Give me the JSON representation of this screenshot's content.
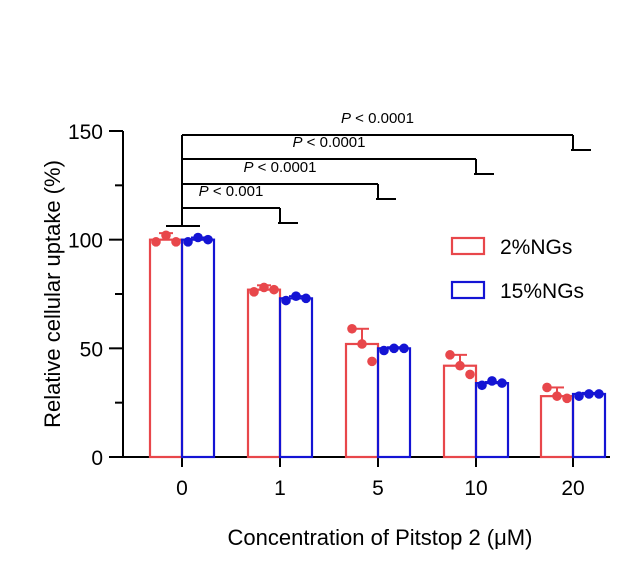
{
  "chart_data": {
    "type": "bar",
    "xlabel": "Concentration of Pitstop 2 (μM)",
    "ylabel": "Relative cellular uptake (%)",
    "categories": [
      "0",
      "1",
      "5",
      "10",
      "20"
    ],
    "ylim": [
      0,
      150
    ],
    "yticks": [
      0,
      50,
      100,
      150
    ],
    "series": [
      {
        "name": "2%NGs",
        "color": "#e8474b",
        "values": [
          100,
          77,
          52,
          42,
          28
        ],
        "errors": [
          3,
          2,
          7,
          5,
          4
        ],
        "points": [
          [
            99,
            102,
            99
          ],
          [
            76,
            78,
            77
          ],
          [
            59,
            52,
            44
          ],
          [
            47,
            42,
            38
          ],
          [
            32,
            28,
            27
          ]
        ]
      },
      {
        "name": "15%NGs",
        "color": "#1414d4",
        "values": [
          100,
          73,
          50,
          34,
          29
        ],
        "errors": [
          1,
          1,
          0.5,
          0.5,
          0.5
        ],
        "points": [
          [
            99,
            101,
            100
          ],
          [
            72,
            74,
            73
          ],
          [
            49,
            50,
            50
          ],
          [
            33,
            35,
            34
          ],
          [
            28,
            29,
            29
          ]
        ]
      }
    ],
    "comparisons": [
      {
        "label_prefix": "P",
        "label_rest": " < 0.001",
        "from": "0",
        "to": "1"
      },
      {
        "label_prefix": "P",
        "label_rest": " < 0.0001",
        "from": "0",
        "to": "5"
      },
      {
        "label_prefix": "P",
        "label_rest": " < 0.0001",
        "from": "0",
        "to": "10"
      },
      {
        "label_prefix": "P",
        "label_rest": " < 0.0001",
        "from": "0",
        "to": "20"
      }
    ],
    "legend_position": "right"
  }
}
